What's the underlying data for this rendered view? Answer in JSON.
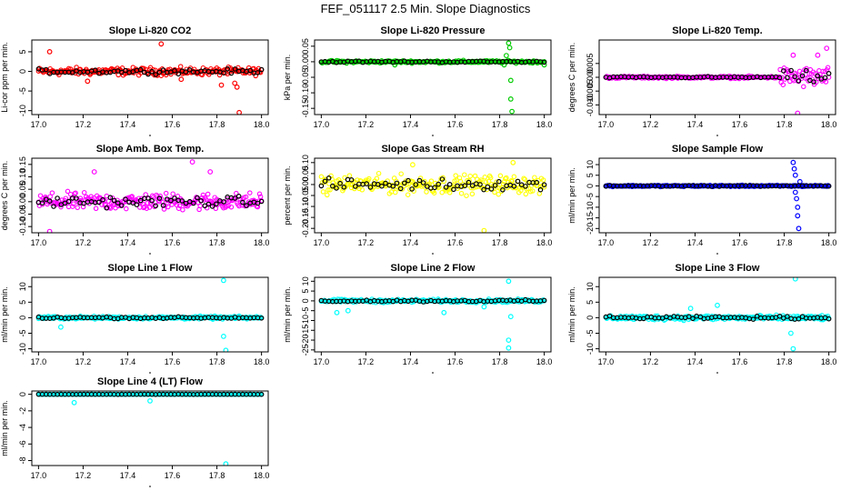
{
  "title": "FEF_051117  2.5 Min. Slope Diagnostics",
  "chart_data": [
    {
      "id": "co2",
      "type": "scatter",
      "title": "Slope Li-820 CO2",
      "ylabel": "Li-cor ppm per min.",
      "color": "#ff0000",
      "xlim": [
        16.97,
        18.03
      ],
      "ylim": [
        -11,
        8
      ],
      "yticks": [
        -10,
        -5,
        0,
        5
      ],
      "ytick_labels": [
        "-10",
        "-5",
        "0",
        "5"
      ],
      "xticks": [
        17.0,
        17.2,
        17.4,
        17.6,
        17.8,
        18.0
      ],
      "xtick_labels": [
        "17.0",
        "17.2",
        "17.4",
        "17.6",
        "17.8",
        "18.0"
      ],
      "spread": 1.4,
      "outliers": [
        [
          17.05,
          5.0
        ],
        [
          17.55,
          7.0
        ],
        [
          17.88,
          -3.0
        ],
        [
          17.89,
          -4.0
        ],
        [
          17.9,
          -10.5
        ],
        [
          17.82,
          -3.5
        ],
        [
          17.64,
          -2.0
        ],
        [
          17.22,
          -2.5
        ]
      ]
    },
    {
      "id": "pressure",
      "type": "scatter",
      "title": "Slope Li-820 Pressure",
      "ylabel": "kPa per min.",
      "color": "#00cc00",
      "xlim": [
        16.97,
        18.03
      ],
      "ylim": [
        -0.17,
        0.07
      ],
      "yticks": [
        -0.15,
        -0.1,
        -0.05,
        0,
        0.05
      ],
      "ytick_labels": [
        "-0.15",
        "-0.10",
        "-0.05",
        "0.00",
        "0.05"
      ],
      "xticks": [
        17.0,
        17.2,
        17.4,
        17.6,
        17.8,
        18.0
      ],
      "xtick_labels": [
        "17.0",
        "17.2",
        "17.4",
        "17.6",
        "17.8",
        "18.0"
      ],
      "spread": 0.006,
      "outliers": [
        [
          17.84,
          0.06
        ],
        [
          17.845,
          0.045
        ],
        [
          17.85,
          -0.06
        ],
        [
          17.85,
          -0.12
        ],
        [
          17.855,
          -0.16
        ],
        [
          17.83,
          0.02
        ],
        [
          17.33,
          -0.01
        ],
        [
          17.82,
          -0.01
        ],
        [
          18.0,
          -0.01
        ]
      ]
    },
    {
      "id": "temp",
      "type": "scatter",
      "title": "Slope Li-820 Temp.",
      "ylabel": "degrees C per min.",
      "color": "#ff00ff",
      "xlim": [
        16.97,
        18.03
      ],
      "ylim": [
        -0.0135,
        0.0135
      ],
      "yticks": [
        -0.01,
        -0.005,
        0,
        0.005
      ],
      "ytick_labels": [
        "-0.010",
        "-0.005",
        "0.000",
        "0.005"
      ],
      "xticks": [
        17.0,
        17.2,
        17.4,
        17.6,
        17.8,
        18.0
      ],
      "xtick_labels": [
        "17.0",
        "17.2",
        "17.4",
        "17.6",
        "17.8",
        "18.0"
      ],
      "spread": 0.0006,
      "widebelow": 0,
      "widefrom": 17.78,
      "widespread": 0.0055,
      "outliers": [
        [
          17.86,
          -0.013
        ],
        [
          17.99,
          0.0105
        ],
        [
          17.84,
          0.008
        ],
        [
          17.95,
          0.008
        ]
      ]
    },
    {
      "id": "ambtemp",
      "type": "scatter",
      "title": "Slope Amb. Box Temp.",
      "ylabel": "degrees C per min.",
      "color": "#ff00ff",
      "xlim": [
        16.97,
        18.03
      ],
      "ylim": [
        -0.125,
        0.175
      ],
      "yticks": [
        -0.1,
        -0.05,
        0,
        0.05,
        0.1,
        0.15
      ],
      "ytick_labels": [
        "-0.10",
        "-0.05",
        "0.00",
        "0.05",
        "0.10",
        "0.15"
      ],
      "xticks": [
        17.0,
        17.2,
        17.4,
        17.6,
        17.8,
        18.0
      ],
      "xtick_labels": [
        "17.0",
        "17.2",
        "17.4",
        "17.6",
        "17.8",
        "18.0"
      ],
      "spread": 0.05,
      "outliers": [
        [
          17.69,
          0.16
        ],
        [
          17.05,
          -0.12
        ],
        [
          17.25,
          0.12
        ],
        [
          17.77,
          0.12
        ]
      ]
    },
    {
      "id": "rh",
      "type": "scatter",
      "title": "Slope Gas Stream RH",
      "ylabel": "percent per min.",
      "color": "#ffff00",
      "xlim": [
        16.97,
        18.03
      ],
      "ylim": [
        -0.22,
        0.12
      ],
      "yticks": [
        -0.2,
        -0.15,
        -0.1,
        -0.05,
        0,
        0.05,
        0.1
      ],
      "ytick_labels": [
        "-0.20",
        "-0.15",
        "-0.10",
        "-0.05",
        "0.00",
        "0.05",
        "0.10"
      ],
      "xticks": [
        17.0,
        17.2,
        17.4,
        17.6,
        17.8,
        18.0
      ],
      "xtick_labels": [
        "17.0",
        "17.2",
        "17.4",
        "17.6",
        "17.8",
        "18.0"
      ],
      "spread": 0.06,
      "outliers": [
        [
          17.73,
          -0.21
        ],
        [
          17.86,
          0.1
        ],
        [
          17.41,
          0.09
        ]
      ]
    },
    {
      "id": "sample",
      "type": "scatter",
      "title": "Slope Sample Flow",
      "ylabel": "ml/min per min.",
      "color": "#0000ff",
      "xlim": [
        16.97,
        18.03
      ],
      "ylim": [
        -22,
        13
      ],
      "yticks": [
        -20,
        -15,
        -10,
        -5,
        0,
        5,
        10
      ],
      "ytick_labels": [
        "-20",
        "-15",
        "-10",
        "-5",
        "0",
        "5",
        "10"
      ],
      "xticks": [
        17.0,
        17.2,
        17.4,
        17.6,
        17.8,
        18.0
      ],
      "xtick_labels": [
        "17.0",
        "17.2",
        "17.4",
        "17.6",
        "17.8",
        "18.0"
      ],
      "spread": 0.5,
      "outliers": [
        [
          17.84,
          11
        ],
        [
          17.845,
          8
        ],
        [
          17.85,
          5
        ],
        [
          17.85,
          -3
        ],
        [
          17.855,
          -6
        ],
        [
          17.86,
          -10
        ],
        [
          17.86,
          -14
        ],
        [
          17.865,
          -20
        ],
        [
          17.87,
          2
        ]
      ]
    },
    {
      "id": "line1",
      "type": "scatter",
      "title": "Slope Line 1 Flow",
      "ylabel": "ml/min per min.",
      "color": "#00ffff",
      "xlim": [
        16.97,
        18.03
      ],
      "ylim": [
        -11,
        13
      ],
      "yticks": [
        -10,
        -5,
        0,
        5,
        10
      ],
      "ytick_labels": [
        "-10",
        "-5",
        "0",
        "5",
        "10"
      ],
      "xticks": [
        17.0,
        17.2,
        17.4,
        17.6,
        17.8,
        18.0
      ],
      "xtick_labels": [
        "17.0",
        "17.2",
        "17.4",
        "17.6",
        "17.8",
        "18.0"
      ],
      "spread": 0.7,
      "outliers": [
        [
          17.83,
          12
        ],
        [
          17.83,
          -6
        ],
        [
          17.84,
          -10.5
        ],
        [
          17.1,
          -3
        ]
      ]
    },
    {
      "id": "line2",
      "type": "scatter",
      "title": "Slope Line 2 Flow",
      "ylabel": "ml/min per min.",
      "color": "#00ffff",
      "xlim": [
        16.97,
        18.03
      ],
      "ylim": [
        -26,
        12
      ],
      "yticks": [
        -25,
        -20,
        -15,
        -10,
        -5,
        0,
        5,
        10
      ],
      "ytick_labels": [
        "-25",
        "-20",
        "-15",
        "-10",
        "-5",
        "0",
        "5",
        "10"
      ],
      "xticks": [
        17.0,
        17.2,
        17.4,
        17.6,
        17.8,
        18.0
      ],
      "xtick_labels": [
        "17.0",
        "17.2",
        "17.4",
        "17.6",
        "17.8",
        "18.0"
      ],
      "spread": 1.2,
      "outliers": [
        [
          17.84,
          10
        ],
        [
          17.84,
          -20
        ],
        [
          17.84,
          -24
        ],
        [
          17.85,
          -8
        ],
        [
          17.07,
          -6
        ],
        [
          17.12,
          -5
        ],
        [
          17.55,
          -6
        ],
        [
          17.73,
          -3
        ]
      ]
    },
    {
      "id": "line3",
      "type": "scatter",
      "title": "Slope Line 3 Flow",
      "ylabel": "ml/min per min.",
      "color": "#00ffff",
      "xlim": [
        16.97,
        18.03
      ],
      "ylim": [
        -11,
        13
      ],
      "yticks": [
        -10,
        -5,
        0,
        5,
        10
      ],
      "ytick_labels": [
        "-10",
        "-5",
        "0",
        "5",
        "10"
      ],
      "xticks": [
        17.0,
        17.2,
        17.4,
        17.6,
        17.8,
        18.0
      ],
      "xtick_labels": [
        "17.0",
        "17.2",
        "17.4",
        "17.6",
        "17.8",
        "18.0"
      ],
      "spread": 1.1,
      "outliers": [
        [
          17.85,
          12.5
        ],
        [
          17.84,
          -10
        ],
        [
          17.83,
          -5
        ],
        [
          17.38,
          3
        ],
        [
          17.5,
          4
        ]
      ]
    },
    {
      "id": "line4",
      "type": "scatter",
      "title": "Slope Line 4 (LT) Flow",
      "ylabel": "ml/min per min.",
      "color": "#00ffff",
      "xlim": [
        16.97,
        18.03
      ],
      "ylim": [
        -8.6,
        0.4
      ],
      "yticks": [
        -8,
        -6,
        -4,
        -2,
        0
      ],
      "ytick_labels": [
        "-8",
        "-6",
        "-4",
        "-2",
        "0"
      ],
      "xticks": [
        17.0,
        17.2,
        17.4,
        17.6,
        17.8,
        18.0
      ],
      "xtick_labels": [
        "17.0",
        "17.2",
        "17.4",
        "17.6",
        "17.8",
        "18.0"
      ],
      "spread": 0.03,
      "outliers": [
        [
          17.16,
          -1.0
        ],
        [
          17.5,
          -0.8
        ],
        [
          17.84,
          -8.4
        ]
      ]
    }
  ]
}
